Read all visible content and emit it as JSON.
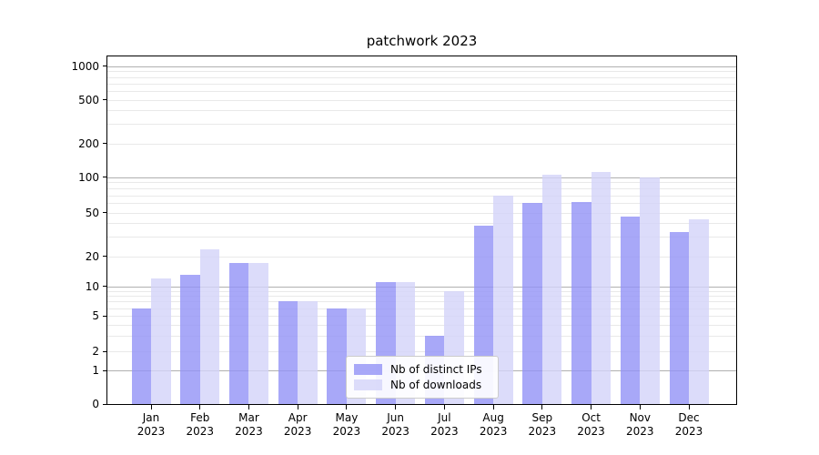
{
  "title": "patchwork 2023",
  "colors": {
    "bar_distinct_ips": "rgba(146,146,246,0.8)",
    "bar_downloads": "rgba(211,211,249,0.8)",
    "major_gridline": "#b0b0b0",
    "minor_gridline": "#e9e9e9",
    "axis_line": "#000000",
    "text": "#000000",
    "legend_border": "#cccccc",
    "legend_background": "rgba(255,255,255,0.9)"
  },
  "chart_data": {
    "type": "bar",
    "title": "patchwork 2023",
    "categories": [
      "Jan 2023",
      "Feb 2023",
      "Mar 2023",
      "Apr 2023",
      "May 2023",
      "Jun 2023",
      "Jul 2023",
      "Aug 2023",
      "Sep 2023",
      "Oct 2023",
      "Nov 2023",
      "Dec 2023"
    ],
    "series": [
      {
        "name": "Nb of distinct IPs",
        "values": [
          6,
          13,
          17,
          7,
          6,
          11,
          3,
          38,
          60,
          61,
          46,
          33
        ],
        "color_key": "bar_distinct_ips"
      },
      {
        "name": "Nb of downloads",
        "values": [
          12,
          23,
          17,
          7,
          6,
          11,
          9,
          70,
          105,
          110,
          100,
          43
        ],
        "color_key": "bar_downloads"
      }
    ],
    "xlabel": "",
    "ylabel": "",
    "yscale": "symlog",
    "y_ticks": [
      0,
      1,
      2,
      5,
      10,
      20,
      50,
      100,
      200,
      500,
      1000
    ],
    "ylim": [
      0,
      1150
    ],
    "grid": true,
    "legend_position": "lower center"
  }
}
